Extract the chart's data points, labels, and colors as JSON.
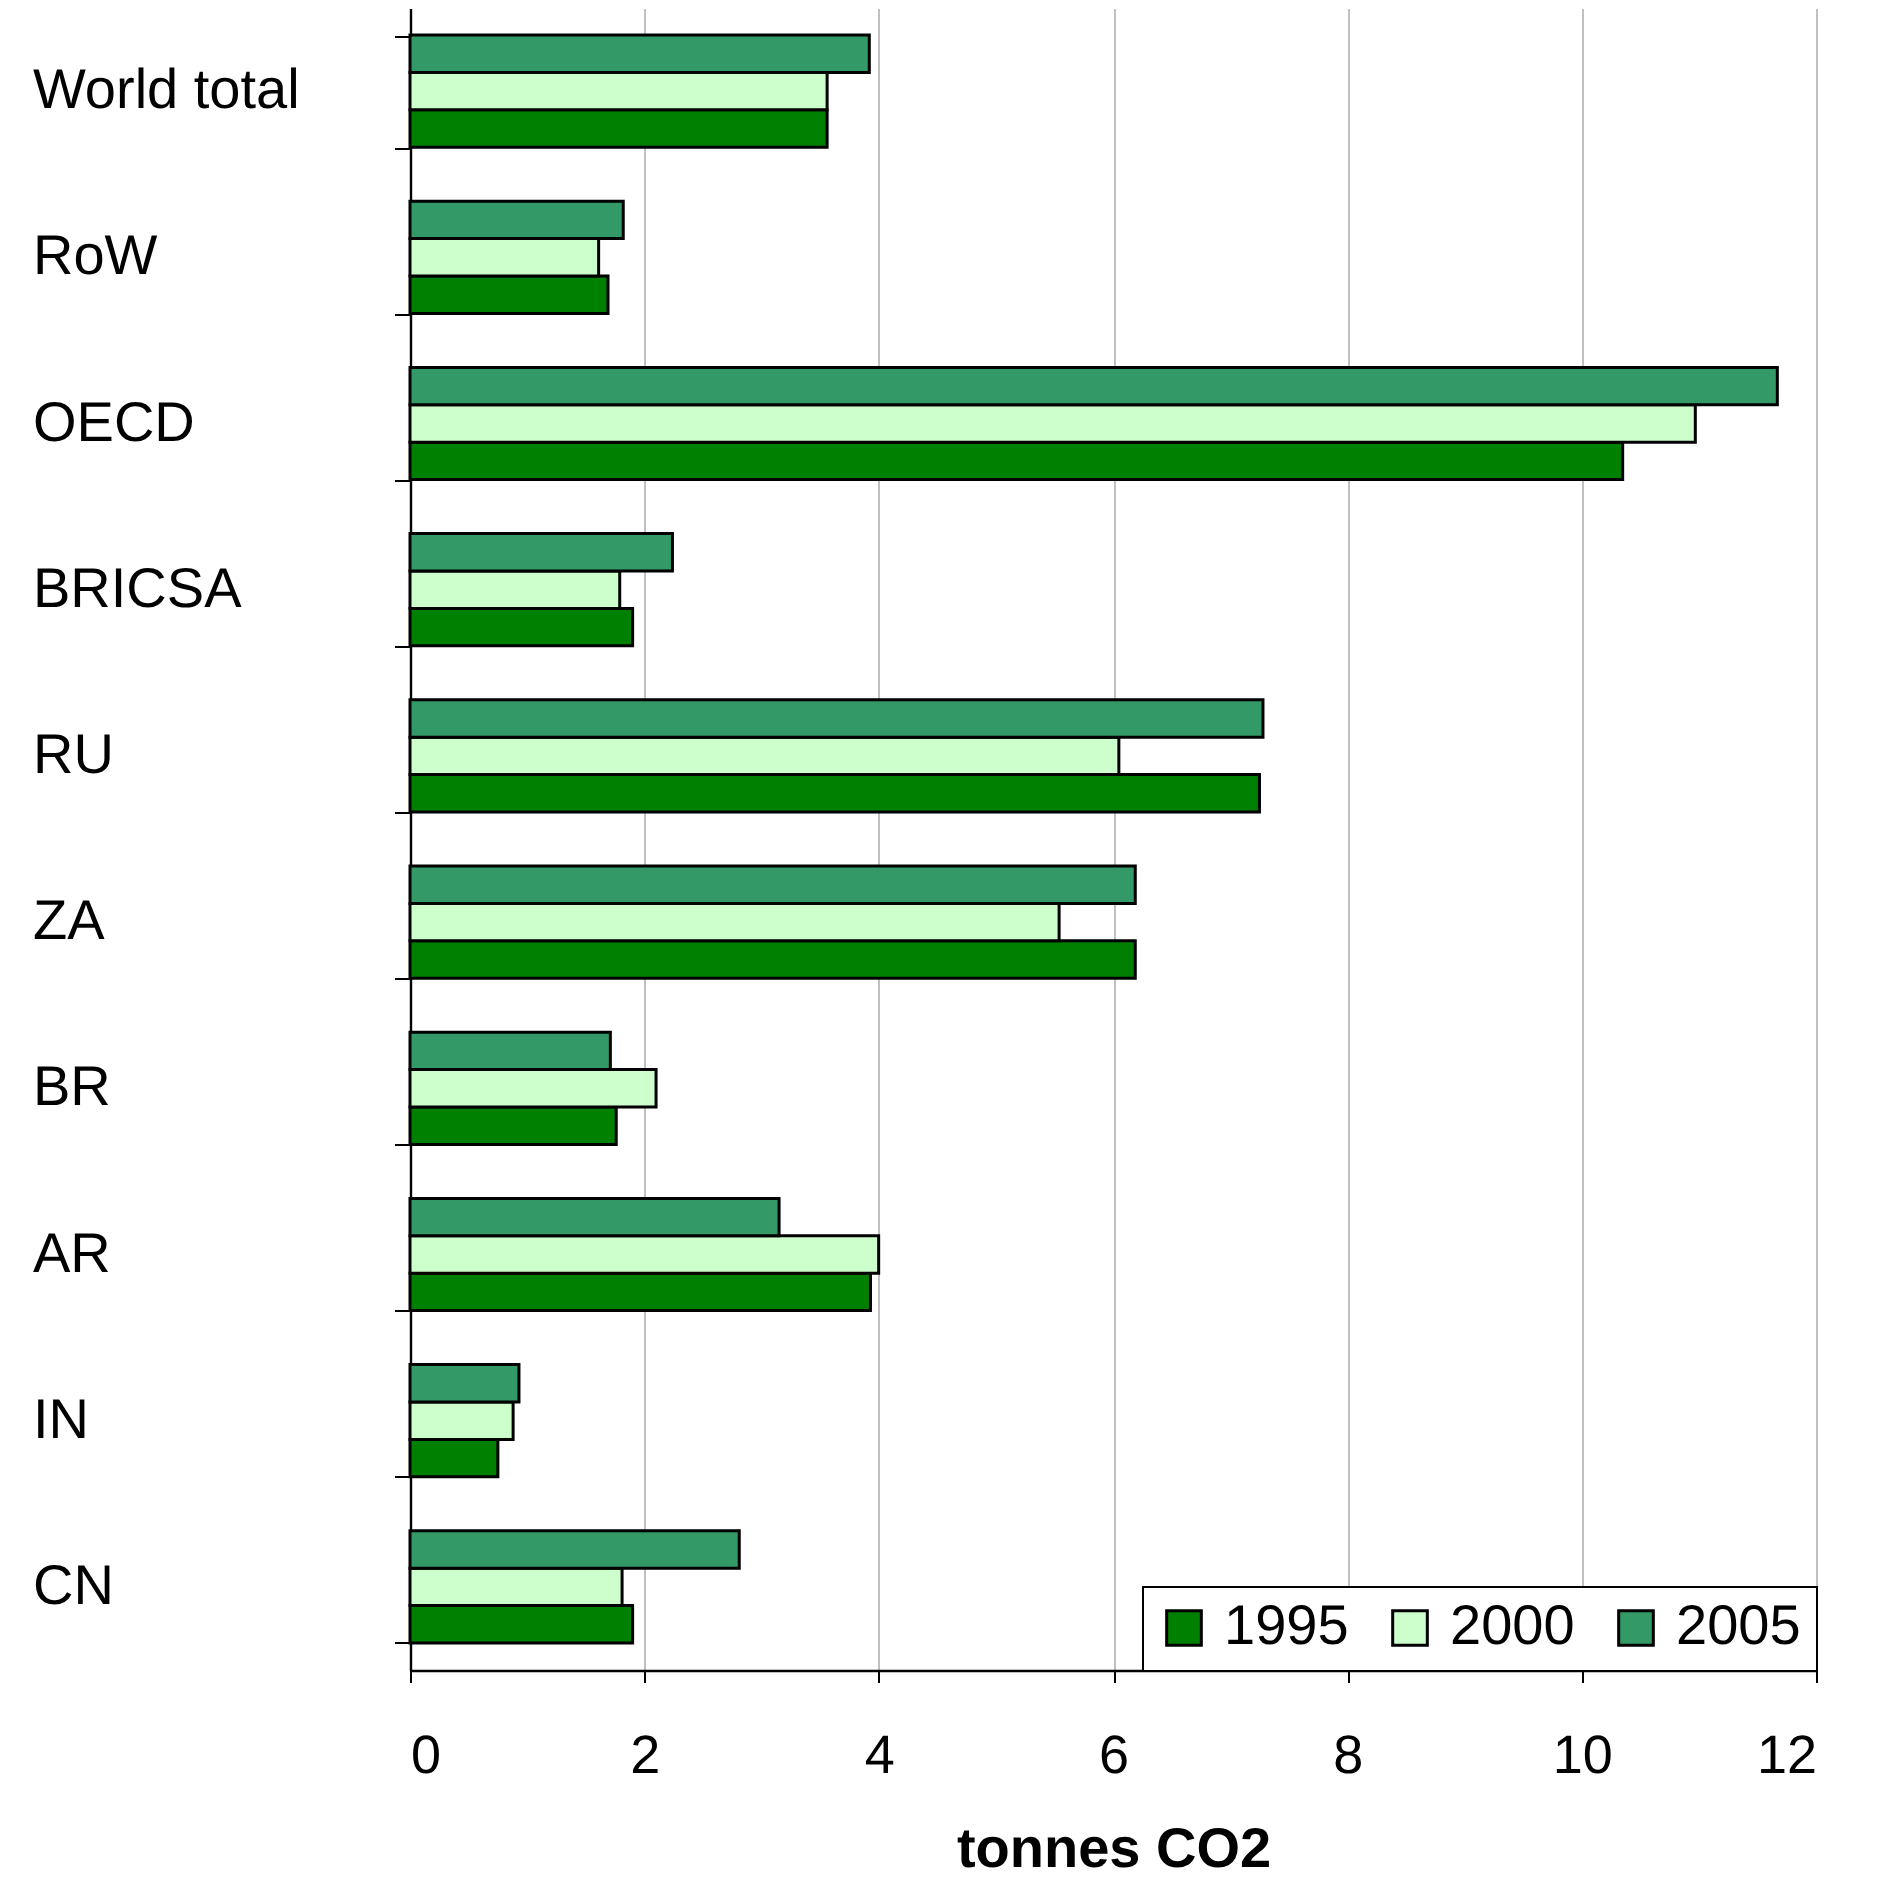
{
  "chart_data": {
    "type": "bar",
    "orientation": "horizontal",
    "xlabel": "tonnes CO2",
    "categories": [
      "World total",
      "RoW",
      "OECD",
      "BRICSA",
      "RU",
      "ZA",
      "BR",
      "AR",
      "IN",
      "CN"
    ],
    "series": [
      {
        "name": "1995",
        "color": "#008000",
        "values": [
          3.56,
          1.69,
          10.35,
          1.9,
          7.25,
          6.19,
          1.76,
          3.93,
          0.75,
          1.9
        ]
      },
      {
        "name": "2000",
        "color": "#ccffcc",
        "values": [
          3.56,
          1.61,
          10.97,
          1.79,
          6.05,
          5.54,
          2.1,
          4.0,
          0.88,
          1.81
        ]
      },
      {
        "name": "2005",
        "color": "#339966",
        "values": [
          3.92,
          1.82,
          11.67,
          2.24,
          7.28,
          6.19,
          1.71,
          3.15,
          0.93,
          2.81
        ]
      }
    ],
    "xlim": [
      0,
      12
    ],
    "xticks": [
      0,
      2,
      4,
      6,
      8,
      10,
      12
    ],
    "grid": "x",
    "legend": "bottom right"
  }
}
